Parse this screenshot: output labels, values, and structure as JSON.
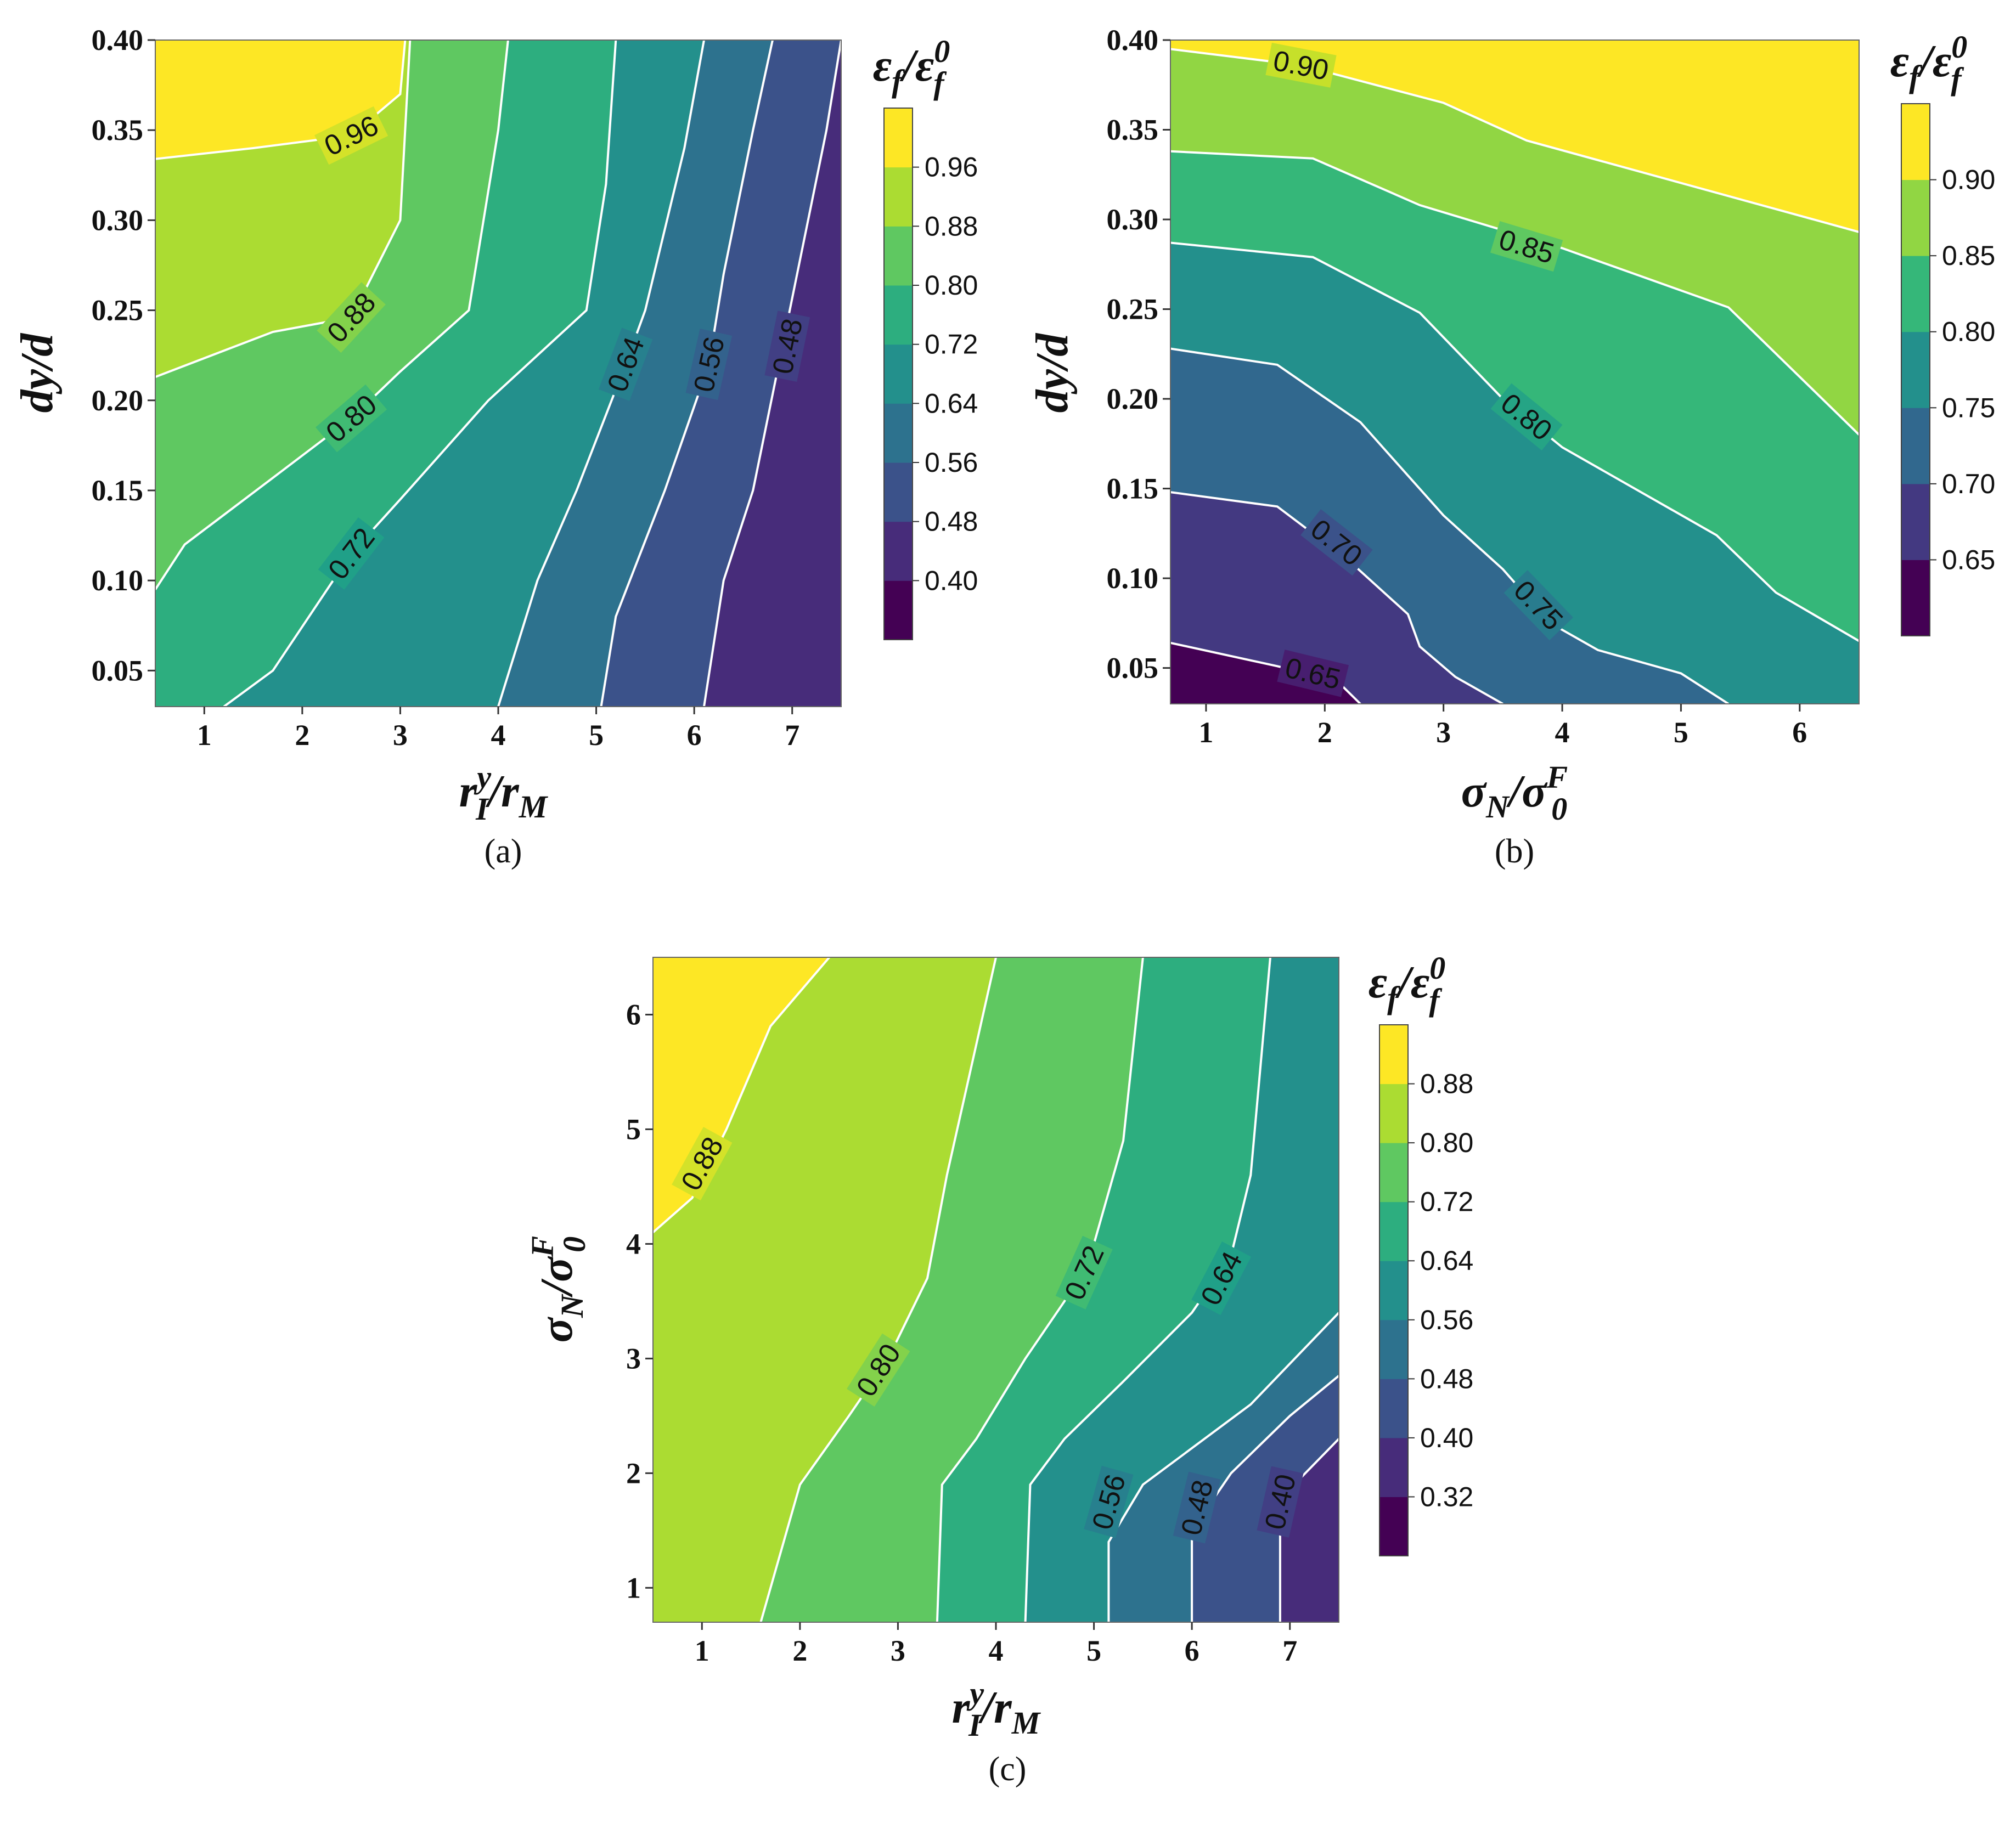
{
  "figure": {
    "panels": [
      "a",
      "b",
      "c"
    ]
  },
  "chart_data": [
    {
      "id": "a",
      "type": "contour",
      "caption": "(a)",
      "xlabel": {
        "main": "r",
        "sup": "y",
        "sub": "I",
        "rest": "/r",
        "rest_sub": "M"
      },
      "ylabel": "dy/d",
      "colorbar_label": {
        "main": "ε",
        "sub": "f",
        "rest": "/ε",
        "rest_sup": "0",
        "rest_sub": "f"
      },
      "xlim": [
        0.5,
        7.5
      ],
      "ylim": [
        0.03,
        0.4
      ],
      "xticks": [
        "1",
        "2",
        "3",
        "4",
        "5",
        "6",
        "7"
      ],
      "xtick_values": [
        1,
        2,
        3,
        4,
        5,
        6,
        7
      ],
      "yticks": [
        "0.05",
        "0.10",
        "0.15",
        "0.20",
        "0.25",
        "0.30",
        "0.35",
        "0.40"
      ],
      "ytick_values": [
        0.05,
        0.1,
        0.15,
        0.2,
        0.25,
        0.3,
        0.35,
        0.4
      ],
      "levels": [
        0.32,
        0.4,
        0.48,
        0.56,
        0.64,
        0.72,
        0.8,
        0.88,
        0.96,
        1.04
      ],
      "colorbar_ticks": [
        "0.40",
        "0.48",
        "0.56",
        "0.64",
        "0.72",
        "0.80",
        "0.88",
        "0.96"
      ],
      "contour_lines": [
        {
          "level": "0.96",
          "points": [
            [
              0.5,
              0.334
            ],
            [
              1.5,
              0.34
            ],
            [
              2.5,
              0.347
            ],
            [
              3.0,
              0.37
            ],
            [
              3.05,
              0.4
            ]
          ],
          "label": "0.96",
          "label_at": [
            2.5,
            0.347
          ]
        },
        {
          "level": "0.88",
          "points": [
            [
              0.5,
              0.213
            ],
            [
              1.7,
              0.238
            ],
            [
              2.5,
              0.246
            ],
            [
              3.0,
              0.3
            ],
            [
              3.1,
              0.4
            ]
          ],
          "label": "0.88",
          "label_at": [
            2.5,
            0.246
          ]
        },
        {
          "level": "0.80",
          "points": [
            [
              0.5,
              0.095
            ],
            [
              0.8,
              0.12
            ],
            [
              1.7,
              0.157
            ],
            [
              2.5,
              0.19
            ],
            [
              3.0,
              0.216
            ],
            [
              3.7,
              0.25
            ],
            [
              4.0,
              0.35
            ],
            [
              4.1,
              0.4
            ]
          ],
          "label": "0.80",
          "label_at": [
            2.5,
            0.19
          ]
        },
        {
          "level": "0.72",
          "points": [
            [
              1.2,
              0.03
            ],
            [
              1.7,
              0.05
            ],
            [
              2.5,
              0.115
            ],
            [
              3.0,
              0.145
            ],
            [
              3.9,
              0.2
            ],
            [
              4.9,
              0.25
            ],
            [
              5.1,
              0.32
            ],
            [
              5.2,
              0.4
            ]
          ],
          "label": "0.72",
          "label_at": [
            2.5,
            0.115
          ]
        },
        {
          "level": "0.64",
          "points": [
            [
              4.0,
              0.03
            ],
            [
              4.4,
              0.1
            ],
            [
              4.8,
              0.15
            ],
            [
              5.3,
              0.22
            ],
            [
              5.5,
              0.25
            ],
            [
              5.9,
              0.34
            ],
            [
              6.1,
              0.4
            ]
          ],
          "label": "0.64",
          "label_at": [
            5.3,
            0.22
          ]
        },
        {
          "level": "0.56",
          "points": [
            [
              5.05,
              0.03
            ],
            [
              5.2,
              0.08
            ],
            [
              5.7,
              0.15
            ],
            [
              6.15,
              0.22
            ],
            [
              6.3,
              0.27
            ],
            [
              6.6,
              0.35
            ],
            [
              6.8,
              0.4
            ]
          ],
          "label": "0.56",
          "label_at": [
            6.15,
            0.22
          ]
        },
        {
          "level": "0.48",
          "points": [
            [
              6.1,
              0.03
            ],
            [
              6.3,
              0.1
            ],
            [
              6.6,
              0.15
            ],
            [
              6.9,
              0.23
            ],
            [
              7.05,
              0.27
            ],
            [
              7.35,
              0.35
            ],
            [
              7.5,
              0.4
            ]
          ],
          "label": "0.48",
          "label_at": [
            6.95,
            0.23
          ]
        }
      ]
    },
    {
      "id": "b",
      "type": "contour",
      "caption": "(b)",
      "xlabel": {
        "main": "σ",
        "sub": "N",
        "rest": "/σ",
        "rest_sup": "F",
        "rest_sub": "0"
      },
      "ylabel": "dy/d",
      "colorbar_label": {
        "main": "ε",
        "sub": "f",
        "rest": "/ε",
        "rest_sup": "0",
        "rest_sub": "f"
      },
      "xlim": [
        0.7,
        6.5
      ],
      "ylim": [
        0.03,
        0.4
      ],
      "xticks": [
        "1",
        "2",
        "3",
        "4",
        "5",
        "6"
      ],
      "xtick_values": [
        1,
        2,
        3,
        4,
        5,
        6
      ],
      "yticks": [
        "0.05",
        "0.10",
        "0.15",
        "0.20",
        "0.25",
        "0.30",
        "0.35",
        "0.40"
      ],
      "ytick_values": [
        0.05,
        0.1,
        0.15,
        0.2,
        0.25,
        0.3,
        0.35,
        0.4
      ],
      "levels": [
        0.6,
        0.65,
        0.7,
        0.75,
        0.8,
        0.85,
        0.9,
        0.95
      ],
      "colorbar_ticks": [
        "0.65",
        "0.70",
        "0.75",
        "0.80",
        "0.85",
        "0.90"
      ],
      "contour_lines": [
        {
          "level": "0.90",
          "points": [
            [
              0.7,
              0.395
            ],
            [
              1.8,
              0.386
            ],
            [
              3.0,
              0.365
            ],
            [
              3.7,
              0.344
            ],
            [
              6.5,
              0.293
            ]
          ],
          "label": "0.90",
          "label_at": [
            1.8,
            0.386
          ]
        },
        {
          "level": "0.85",
          "points": [
            [
              0.7,
              0.338
            ],
            [
              1.9,
              0.334
            ],
            [
              2.8,
              0.308
            ],
            [
              4.0,
              0.284
            ],
            [
              5.4,
              0.251
            ],
            [
              6.5,
              0.18
            ]
          ],
          "label": "0.85",
          "label_at": [
            3.7,
            0.285
          ]
        },
        {
          "level": "0.80",
          "points": [
            [
              0.7,
              0.287
            ],
            [
              1.9,
              0.279
            ],
            [
              2.8,
              0.248
            ],
            [
              3.5,
              0.2
            ],
            [
              4.0,
              0.173
            ],
            [
              5.3,
              0.124
            ],
            [
              5.8,
              0.092
            ],
            [
              6.5,
              0.065
            ]
          ],
          "label": "0.80",
          "label_at": [
            3.7,
            0.19
          ]
        },
        {
          "level": "0.75",
          "points": [
            [
              0.7,
              0.228
            ],
            [
              1.6,
              0.219
            ],
            [
              2.3,
              0.187
            ],
            [
              3.0,
              0.135
            ],
            [
              3.5,
              0.105
            ],
            [
              3.9,
              0.075
            ],
            [
              4.3,
              0.06
            ],
            [
              5.0,
              0.047
            ],
            [
              5.4,
              0.03
            ]
          ],
          "label": "0.75",
          "label_at": [
            3.8,
            0.085
          ]
        },
        {
          "level": "0.70",
          "points": [
            [
              0.7,
              0.148
            ],
            [
              1.6,
              0.14
            ],
            [
              2.2,
              0.11
            ],
            [
              2.7,
              0.08
            ],
            [
              2.8,
              0.062
            ],
            [
              3.1,
              0.045
            ],
            [
              3.5,
              0.03
            ]
          ],
          "label": "0.70",
          "label_at": [
            2.1,
            0.12
          ]
        },
        {
          "level": "0.65",
          "points": [
            [
              0.7,
              0.064
            ],
            [
              1.6,
              0.051
            ],
            [
              2.1,
              0.043
            ],
            [
              2.3,
              0.03
            ]
          ],
          "label": "0.65",
          "label_at": [
            1.9,
            0.047
          ]
        }
      ]
    },
    {
      "id": "c",
      "type": "contour",
      "caption": "(c)",
      "xlabel": {
        "main": "r",
        "sup": "y",
        "sub": "I",
        "rest": "/r",
        "rest_sub": "M"
      },
      "ylabel": {
        "main": "σ",
        "sub": "N",
        "rest": "/σ",
        "rest_sup": "F",
        "rest_sub": "0"
      },
      "colorbar_label": {
        "main": "ε",
        "sub": "f",
        "rest": "/ε",
        "rest_sup": "0",
        "rest_sub": "f"
      },
      "xlim": [
        0.5,
        7.5
      ],
      "ylim": [
        0.7,
        6.5
      ],
      "xticks": [
        "1",
        "2",
        "3",
        "4",
        "5",
        "6",
        "7"
      ],
      "xtick_values": [
        1,
        2,
        3,
        4,
        5,
        6,
        7
      ],
      "yticks": [
        "1",
        "2",
        "3",
        "4",
        "5",
        "6"
      ],
      "ytick_values": [
        1,
        2,
        3,
        4,
        5,
        6
      ],
      "levels": [
        0.24,
        0.32,
        0.4,
        0.48,
        0.56,
        0.64,
        0.72,
        0.8,
        0.88,
        0.96
      ],
      "colorbar_ticks": [
        "0.32",
        "0.40",
        "0.48",
        "0.56",
        "0.64",
        "0.72",
        "0.80",
        "0.88"
      ],
      "contour_lines": [
        {
          "level": "0.88",
          "points": [
            [
              0.5,
              4.1
            ],
            [
              0.9,
              4.4
            ],
            [
              1.25,
              5.0
            ],
            [
              1.7,
              5.9
            ],
            [
              2.3,
              6.5
            ]
          ],
          "label": "0.88",
          "label_at": [
            1.0,
            4.7
          ]
        },
        {
          "level": "0.80",
          "points": [
            [
              1.6,
              0.7
            ],
            [
              2.0,
              1.9
            ],
            [
              2.5,
              2.5
            ],
            [
              2.9,
              3.0
            ],
            [
              3.3,
              3.7
            ],
            [
              3.5,
              4.6
            ],
            [
              4.0,
              6.5
            ]
          ],
          "label": "0.80",
          "label_at": [
            2.8,
            2.9
          ]
        },
        {
          "level": "0.72",
          "points": [
            [
              3.4,
              0.7
            ],
            [
              3.45,
              1.9
            ],
            [
              3.8,
              2.3
            ],
            [
              4.3,
              3.0
            ],
            [
              4.7,
              3.5
            ],
            [
              5.0,
              4.0
            ],
            [
              5.3,
              4.9
            ],
            [
              5.5,
              6.5
            ]
          ],
          "label": "0.72",
          "label_at": [
            4.9,
            3.75
          ]
        },
        {
          "level": "0.64",
          "points": [
            [
              4.3,
              0.7
            ],
            [
              4.35,
              1.9
            ],
            [
              4.7,
              2.3
            ],
            [
              5.3,
              2.8
            ],
            [
              6.0,
              3.4
            ],
            [
              6.4,
              3.9
            ],
            [
              6.6,
              4.6
            ],
            [
              6.8,
              6.5
            ]
          ],
          "label": "0.64",
          "label_at": [
            6.3,
            3.7
          ]
        },
        {
          "level": "0.56",
          "points": [
            [
              5.15,
              0.7
            ],
            [
              5.15,
              1.4
            ],
            [
              5.5,
              1.9
            ],
            [
              6.6,
              2.6
            ],
            [
              7.5,
              3.4
            ]
          ],
          "label": "0.56",
          "label_at": [
            5.15,
            1.75
          ]
        },
        {
          "level": "0.48",
          "points": [
            [
              6.0,
              0.7
            ],
            [
              6.0,
              1.5
            ],
            [
              6.4,
              2.0
            ],
            [
              7.0,
              2.5
            ],
            [
              7.5,
              2.85
            ]
          ],
          "label": "0.48",
          "label_at": [
            6.05,
            1.7
          ]
        },
        {
          "level": "0.40",
          "points": [
            [
              6.9,
              0.7
            ],
            [
              6.9,
              1.5
            ],
            [
              7.1,
              1.95
            ],
            [
              7.5,
              2.3
            ]
          ],
          "label": "0.40",
          "label_at": [
            6.9,
            1.75
          ]
        }
      ]
    }
  ]
}
